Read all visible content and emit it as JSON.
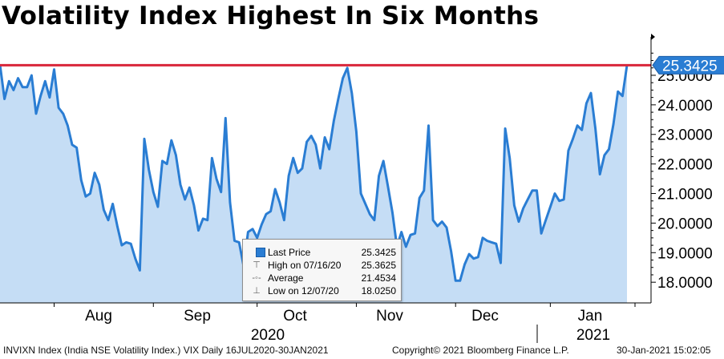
{
  "title": "Volatility Index Highest In Six Months",
  "chart_data": {
    "type": "area",
    "ylim": [
      17.3,
      26.3
    ],
    "y_ticks": [
      "18.0000",
      "19.0000",
      "20.0000",
      "21.0000",
      "22.0000",
      "23.0000",
      "24.0000",
      "25.0000"
    ],
    "y_tick_values": [
      18,
      19,
      20,
      21,
      22,
      23,
      24,
      25
    ],
    "x_month_labels": [
      "Aug",
      "Sep",
      "Oct",
      "Nov",
      "Dec",
      "Jan"
    ],
    "x_year_labels": [
      "2020",
      "2021"
    ],
    "last_price_label": "25.3425",
    "reference_line_value": 25.3425,
    "series": [
      {
        "values": [
          25.36,
          24.2,
          24.8,
          24.5,
          24.9,
          24.6,
          24.6,
          25.0,
          23.7,
          24.3,
          24.8,
          24.25,
          25.2,
          23.9,
          23.7,
          23.3,
          22.65,
          22.55,
          21.45,
          20.9,
          21.0,
          21.7,
          21.3,
          20.45,
          20.1,
          20.65,
          19.9,
          19.25,
          19.35,
          19.3,
          18.8,
          18.4,
          22.85,
          21.8,
          21.05,
          20.55,
          22.1,
          22.0,
          22.8,
          22.3,
          21.3,
          20.8,
          21.2,
          20.6,
          19.75,
          20.15,
          20.1,
          22.2,
          21.5,
          21.05,
          23.55,
          20.7,
          19.4,
          19.35,
          18.55,
          19.7,
          19.8,
          19.5,
          19.95,
          20.3,
          20.4,
          21.15,
          20.7,
          20.1,
          21.6,
          22.2,
          21.7,
          21.85,
          22.75,
          22.95,
          22.65,
          21.85,
          22.9,
          22.5,
          23.45,
          24.2,
          24.9,
          25.25,
          24.4,
          23.1,
          21.0,
          20.65,
          20.3,
          20.1,
          21.6,
          22.1,
          21.25,
          20.35,
          19.2,
          19.7,
          19.2,
          19.6,
          19.65,
          20.85,
          21.1,
          23.3,
          20.1,
          19.9,
          20.05,
          19.85,
          19.05,
          18.05,
          18.05,
          18.6,
          18.95,
          18.8,
          18.85,
          19.5,
          19.4,
          19.35,
          19.3,
          18.65,
          23.2,
          22.2,
          20.6,
          20.05,
          20.5,
          20.8,
          21.1,
          21.1,
          19.65,
          20.1,
          20.55,
          21.0,
          20.75,
          20.8,
          22.45,
          22.85,
          23.3,
          23.15,
          24.05,
          24.4,
          23.2,
          21.65,
          22.3,
          22.5,
          23.35,
          24.45,
          24.3,
          25.3425
        ]
      }
    ]
  },
  "legend": {
    "last_price_label": "Last Price",
    "last_price_value": "25.3425",
    "high_label": "High on 07/16/20",
    "high_value": "25.3625",
    "average_label": "Average",
    "average_value": "21.4534",
    "low_label": "Low on 12/07/20",
    "low_value": "18.0250"
  },
  "footer": {
    "index_text": "INVIXN Index (India NSE Volatility Index.) VIX  Daily 16JUL2020-30JAN2021",
    "copyright_text": "Copyright© 2021 Bloomberg Finance L.P.",
    "timestamp_text": "30-Jan-2021 15:02:05"
  },
  "colors": {
    "line": "#2a7dd3",
    "fill": "#c5ddf5",
    "reference_line": "#d9263a",
    "last_price_tag": "#2a7dd3"
  }
}
